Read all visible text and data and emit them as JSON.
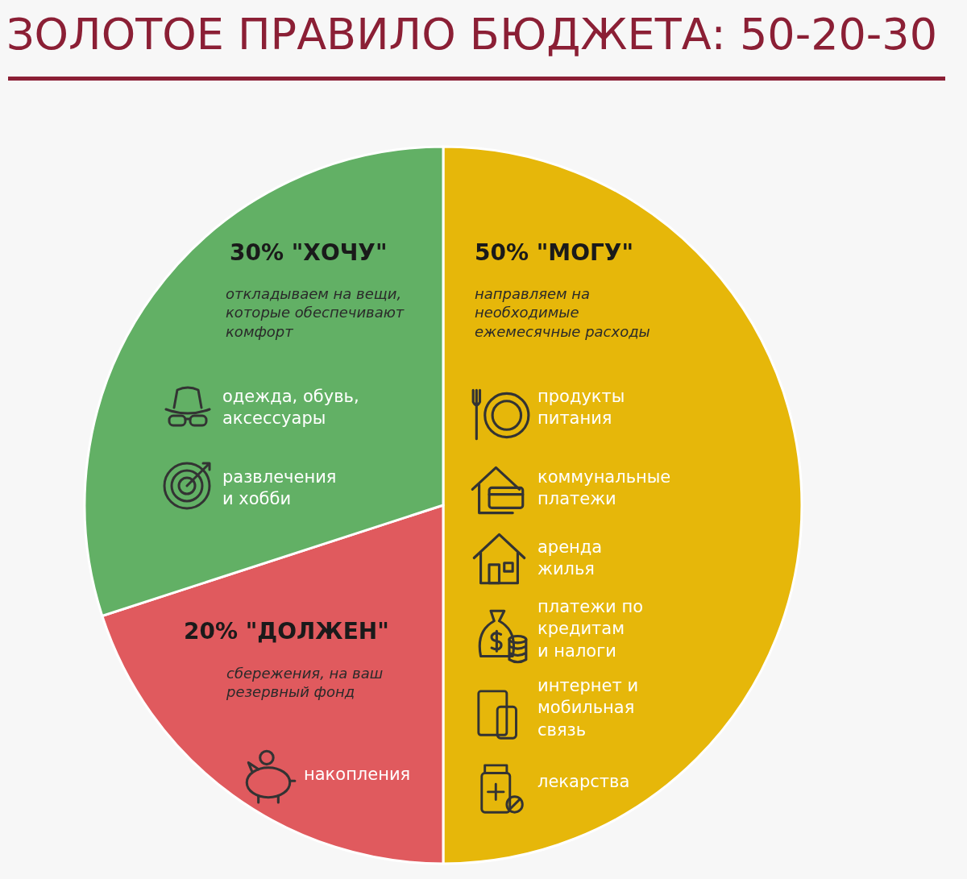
{
  "chart_data": {
    "type": "pie",
    "title": "ЗОЛОТОЕ ПРАВИЛО БЮДЖЕТА: 50-20-30",
    "categories": [
      "\"МОГУ\"",
      "\"ДОЛЖЕН\"",
      "\"ХОЧУ\""
    ],
    "values": [
      50,
      20,
      30
    ],
    "value_labels": [
      "50%",
      "20%",
      "30%"
    ],
    "colors": [
      "#e6b70a",
      "#e05a5e",
      "#62b065"
    ],
    "legend": false,
    "annotations": [
      "откладываем на вещи,\nкоторые обеспечивают\nкомфорт",
      "одежда, обувь,\nаксессуары",
      "развлечения\nи хобби",
      "направляем на\nнеобходимые\nежемесячные расходы",
      "продукты\nпитания",
      "коммунальные\nплатежи",
      "аренда\nжилья",
      "платежи по\nкредитам\nи налоги",
      "интернет и\nмобильная\nсвязь",
      "лекарства",
      "сбережения, на ваш\nрезервный фонд",
      "накопления"
    ]
  }
}
